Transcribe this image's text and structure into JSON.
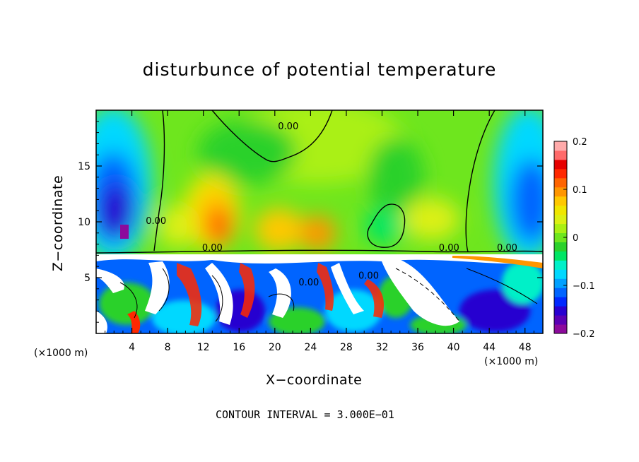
{
  "chart_data": {
    "type": "heatmap",
    "title": "disturbunce of potential temperature",
    "xlabel": "X−coordinate",
    "ylabel": "Z−coordinate",
    "x_unit_left": "(×1000 m)",
    "x_unit_right": "(×1000 m)",
    "x_ticks": [
      "4",
      "8",
      "12",
      "16",
      "20",
      "24",
      "28",
      "32",
      "36",
      "40",
      "44",
      "48"
    ],
    "x_tick_values": [
      4,
      8,
      12,
      16,
      20,
      24,
      28,
      32,
      36,
      40,
      44,
      48
    ],
    "y_ticks": [
      "5",
      "10",
      "15"
    ],
    "y_tick_values": [
      5,
      10,
      15
    ],
    "xlim": [
      0,
      50
    ],
    "ylim": [
      0,
      20
    ],
    "colorbar": {
      "ticks": [
        "0.2",
        "0.1",
        "0",
        "−0.1",
        "−0.2"
      ],
      "tick_values": [
        0.2,
        0.1,
        0,
        -0.1,
        -0.2
      ],
      "range": [
        -0.2,
        0.2
      ],
      "colors": [
        "#8c0a9c",
        "#5a00b4",
        "#2800d0",
        "#0028ff",
        "#0064ff",
        "#00a0ff",
        "#00d8ff",
        "#00f0c8",
        "#00e664",
        "#2bd12b",
        "#6ee61e",
        "#aaf014",
        "#dcf014",
        "#f0e600",
        "#ffc800",
        "#ff9600",
        "#ff6400",
        "#ff2800",
        "#e60000",
        "#ff6a6a",
        "#ffaaaa"
      ]
    },
    "contour_labels": [
      {
        "text": "0.00",
        "x": 21.5,
        "z": 18.3
      },
      {
        "text": "0.00",
        "x": 6.7,
        "z": 9.8
      },
      {
        "text": "0.00",
        "x": 13.0,
        "z": 7.4
      },
      {
        "text": "0.00",
        "x": 23.8,
        "z": 4.3
      },
      {
        "text": "0.00",
        "x": 30.5,
        "z": 4.9
      },
      {
        "text": "0.00",
        "x": 39.5,
        "z": 7.4
      },
      {
        "text": "0.00",
        "x": 46.0,
        "z": 7.4
      }
    ],
    "contour_interval_text": "CONTOUR INTERVAL = 3.000E−01"
  }
}
